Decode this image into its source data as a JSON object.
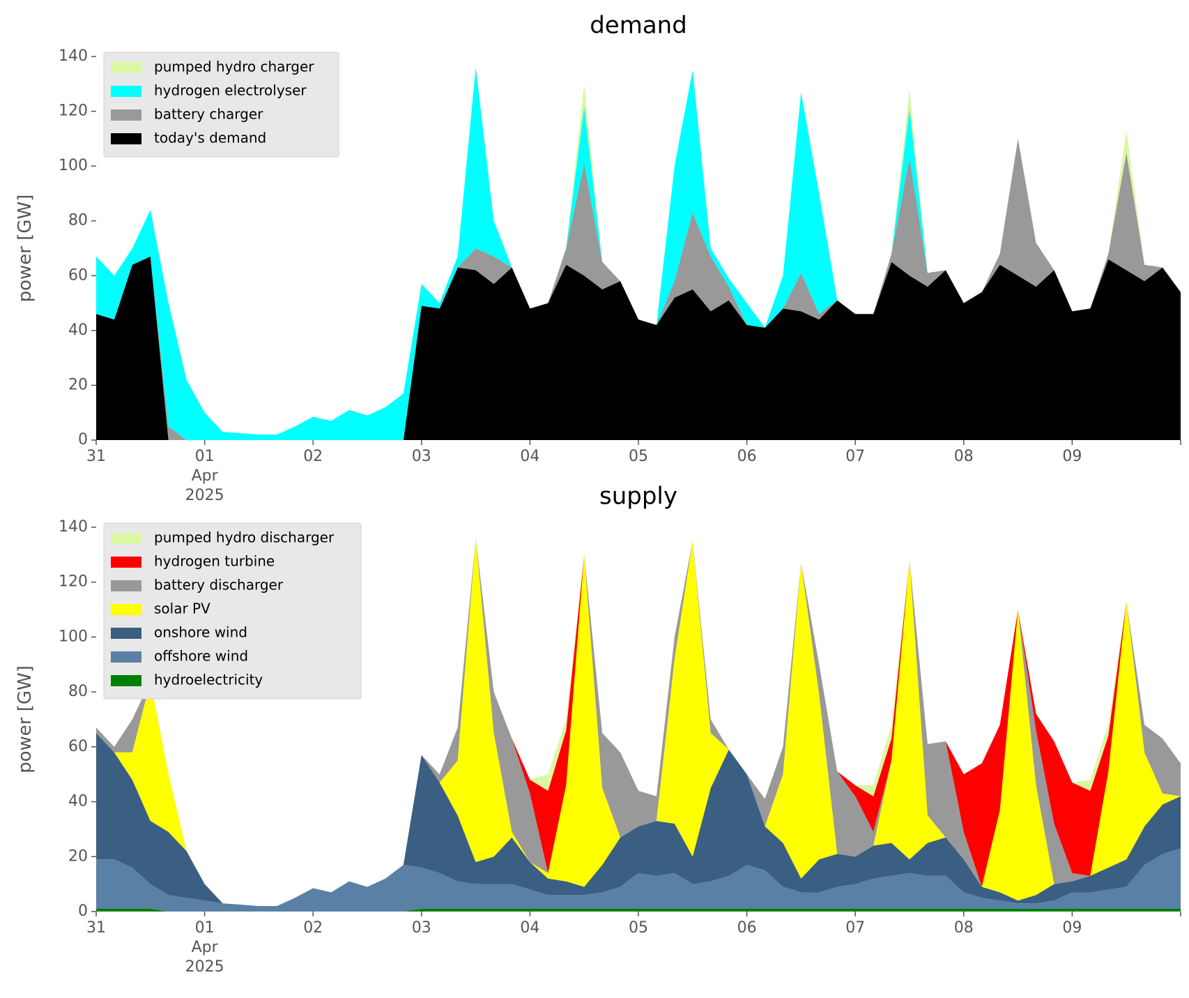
{
  "chart_data": [
    {
      "type": "area",
      "stacked": true,
      "title": "demand",
      "ylabel": "power [GW]",
      "legend": "upper left",
      "x": [
        "2025-03-31 00:00",
        "2025-03-31 04:00",
        "2025-03-31 08:00",
        "2025-03-31 12:00",
        "2025-03-31 16:00",
        "2025-03-31 20:00",
        "2025-04-01 00:00",
        "2025-04-01 04:00",
        "2025-04-01 08:00",
        "2025-04-01 12:00",
        "2025-04-01 16:00",
        "2025-04-01 20:00",
        "2025-04-02 00:00",
        "2025-04-02 04:00",
        "2025-04-02 08:00",
        "2025-04-02 12:00",
        "2025-04-02 16:00",
        "2025-04-02 20:00",
        "2025-04-03 00:00",
        "2025-04-03 04:00",
        "2025-04-03 08:00",
        "2025-04-03 12:00",
        "2025-04-03 16:00",
        "2025-04-03 20:00",
        "2025-04-04 00:00",
        "2025-04-04 04:00",
        "2025-04-04 08:00",
        "2025-04-04 12:00",
        "2025-04-04 16:00",
        "2025-04-04 20:00",
        "2025-04-05 00:00",
        "2025-04-05 04:00",
        "2025-04-05 08:00",
        "2025-04-05 12:00",
        "2025-04-05 16:00",
        "2025-04-05 20:00",
        "2025-04-06 00:00",
        "2025-04-06 04:00",
        "2025-04-06 08:00",
        "2025-04-06 12:00",
        "2025-04-06 16:00",
        "2025-04-06 20:00",
        "2025-04-07 00:00",
        "2025-04-07 04:00",
        "2025-04-07 08:00",
        "2025-04-07 12:00",
        "2025-04-07 16:00",
        "2025-04-07 20:00",
        "2025-04-08 00:00",
        "2025-04-08 04:00",
        "2025-04-08 08:00",
        "2025-04-08 12:00",
        "2025-04-08 16:00",
        "2025-04-08 20:00",
        "2025-04-09 00:00",
        "2025-04-09 04:00",
        "2025-04-09 08:00",
        "2025-04-09 12:00",
        "2025-04-09 16:00",
        "2025-04-09 20:00",
        "2025-04-10 00:00"
      ],
      "xlim": [
        "2025-03-31 00:00",
        "2025-04-10 00:00"
      ],
      "xticks": [
        {
          "value": "2025-03-31",
          "label": "31"
        },
        {
          "value": "2025-04-01",
          "label": "01\nApr\n2025"
        },
        {
          "value": "2025-04-02",
          "label": "02"
        },
        {
          "value": "2025-04-03",
          "label": "03"
        },
        {
          "value": "2025-04-04",
          "label": "04"
        },
        {
          "value": "2025-04-05",
          "label": "05"
        },
        {
          "value": "2025-04-06",
          "label": "06"
        },
        {
          "value": "2025-04-07",
          "label": "07"
        },
        {
          "value": "2025-04-08",
          "label": "08"
        },
        {
          "value": "2025-04-09",
          "label": "09"
        }
      ],
      "ylim": [
        0,
        140
      ],
      "yticks": [
        0,
        20,
        40,
        60,
        80,
        100,
        120,
        140
      ],
      "series": [
        {
          "name": "pumped hydro charger",
          "color": "#dcf7a3",
          "values": [
            0,
            0,
            0,
            0,
            0,
            0,
            0,
            0,
            0,
            0,
            0,
            0,
            0,
            0,
            0,
            0,
            0,
            0,
            0,
            0,
            0,
            0,
            0,
            0,
            0,
            0,
            0,
            8,
            0,
            0,
            0,
            0,
            0,
            0,
            0,
            0,
            0,
            0,
            0,
            0,
            0,
            0,
            0,
            0,
            0,
            7,
            0,
            0,
            0,
            0,
            0,
            0,
            0,
            0,
            0,
            0,
            0,
            8,
            0,
            0,
            0
          ]
        },
        {
          "name": "hydrogen electrolyser",
          "color": "#00ffff",
          "values": [
            21,
            16,
            6,
            17,
            45,
            22,
            10,
            3,
            2.5,
            2,
            2,
            5,
            8.5,
            7,
            11,
            9,
            12,
            17,
            8,
            2,
            4,
            66,
            13,
            0,
            0,
            0,
            0,
            21,
            0,
            0,
            0,
            0,
            42,
            52,
            3,
            3,
            8,
            0,
            12,
            66,
            44,
            0,
            0,
            0,
            0,
            18,
            0,
            0,
            0,
            0,
            0,
            0,
            0,
            0,
            0,
            0,
            0,
            0,
            0,
            0,
            0
          ]
        },
        {
          "name": "battery charger",
          "color": "#999999",
          "values": [
            0,
            0,
            0,
            0,
            5,
            0,
            0,
            0,
            0,
            0,
            0,
            0,
            0,
            0,
            0,
            0,
            0,
            0,
            0,
            0,
            0,
            8,
            10,
            0,
            0,
            0,
            6,
            41,
            10,
            0,
            0,
            0,
            6,
            28,
            20,
            5,
            0,
            0,
            0,
            14,
            2,
            0,
            0,
            0,
            3,
            43,
            5,
            0,
            0,
            0,
            4,
            50,
            16,
            0,
            0,
            0,
            2,
            43,
            6,
            0,
            0
          ]
        },
        {
          "name": "today's demand",
          "color": "#000000",
          "values": [
            46,
            44,
            64,
            67,
            0,
            0,
            0,
            0,
            0,
            0,
            0,
            0,
            0,
            0,
            0,
            0,
            0,
            0,
            49,
            48,
            63,
            62,
            57,
            63,
            48,
            50,
            64,
            60,
            55,
            58,
            44,
            42,
            52,
            55,
            47,
            51,
            42,
            41,
            48,
            47,
            44,
            51,
            46,
            46,
            65,
            60,
            56,
            62,
            50,
            54,
            64,
            60,
            56,
            62,
            47,
            48,
            66,
            62,
            58,
            63,
            54
          ]
        }
      ]
    },
    {
      "type": "area",
      "stacked": true,
      "title": "supply",
      "ylabel": "power [GW]",
      "legend": "upper left",
      "x": [
        "2025-03-31 00:00",
        "2025-03-31 04:00",
        "2025-03-31 08:00",
        "2025-03-31 12:00",
        "2025-03-31 16:00",
        "2025-03-31 20:00",
        "2025-04-01 00:00",
        "2025-04-01 04:00",
        "2025-04-01 08:00",
        "2025-04-01 12:00",
        "2025-04-01 16:00",
        "2025-04-01 20:00",
        "2025-04-02 00:00",
        "2025-04-02 04:00",
        "2025-04-02 08:00",
        "2025-04-02 12:00",
        "2025-04-02 16:00",
        "2025-04-02 20:00",
        "2025-04-03 00:00",
        "2025-04-03 04:00",
        "2025-04-03 08:00",
        "2025-04-03 12:00",
        "2025-04-03 16:00",
        "2025-04-03 20:00",
        "2025-04-04 00:00",
        "2025-04-04 04:00",
        "2025-04-04 08:00",
        "2025-04-04 12:00",
        "2025-04-04 16:00",
        "2025-04-04 20:00",
        "2025-04-05 00:00",
        "2025-04-05 04:00",
        "2025-04-05 08:00",
        "2025-04-05 12:00",
        "2025-04-05 16:00",
        "2025-04-05 20:00",
        "2025-04-06 00:00",
        "2025-04-06 04:00",
        "2025-04-06 08:00",
        "2025-04-06 12:00",
        "2025-04-06 16:00",
        "2025-04-06 20:00",
        "2025-04-07 00:00",
        "2025-04-07 04:00",
        "2025-04-07 08:00",
        "2025-04-07 12:00",
        "2025-04-07 16:00",
        "2025-04-07 20:00",
        "2025-04-08 00:00",
        "2025-04-08 04:00",
        "2025-04-08 08:00",
        "2025-04-08 12:00",
        "2025-04-08 16:00",
        "2025-04-08 20:00",
        "2025-04-09 00:00",
        "2025-04-09 04:00",
        "2025-04-09 08:00",
        "2025-04-09 12:00",
        "2025-04-09 16:00",
        "2025-04-09 20:00",
        "2025-04-10 00:00"
      ],
      "xlim": [
        "2025-03-31 00:00",
        "2025-04-10 00:00"
      ],
      "xticks": [
        {
          "value": "2025-03-31",
          "label": "31"
        },
        {
          "value": "2025-04-01",
          "label": "01\nApr\n2025"
        },
        {
          "value": "2025-04-02",
          "label": "02"
        },
        {
          "value": "2025-04-03",
          "label": "03"
        },
        {
          "value": "2025-04-04",
          "label": "04"
        },
        {
          "value": "2025-04-05",
          "label": "05"
        },
        {
          "value": "2025-04-06",
          "label": "06"
        },
        {
          "value": "2025-04-07",
          "label": "07"
        },
        {
          "value": "2025-04-08",
          "label": "08"
        },
        {
          "value": "2025-04-09",
          "label": "09"
        }
      ],
      "ylim": [
        0,
        140
      ],
      "yticks": [
        0,
        20,
        40,
        60,
        80,
        100,
        120,
        140
      ],
      "series": [
        {
          "name": "pumped hydro discharger",
          "color": "#dcf7a3",
          "values": [
            0,
            0,
            0,
            0,
            0,
            0,
            0,
            0,
            0,
            0,
            0,
            0,
            0,
            0,
            0,
            0,
            0,
            0,
            0,
            0,
            0,
            0,
            0,
            0,
            0,
            6,
            4,
            0,
            0,
            0,
            0,
            0,
            0,
            0,
            0,
            0,
            0,
            0,
            0,
            0,
            0,
            0,
            0,
            4,
            5,
            0,
            0,
            0,
            0,
            0,
            0,
            0,
            0,
            0,
            0,
            4,
            4,
            0,
            0,
            0,
            0
          ]
        },
        {
          "name": "hydrogen turbine",
          "color": "#ff0000",
          "values": [
            0,
            0,
            0,
            0,
            0,
            0,
            0,
            0,
            0,
            0,
            0,
            0,
            0,
            0,
            0,
            0,
            0,
            0,
            0,
            0,
            0,
            0,
            0,
            0,
            5,
            30,
            20,
            0,
            0,
            0,
            0,
            0,
            0,
            0,
            0,
            0,
            0,
            0,
            0,
            0,
            0,
            0,
            4,
            13,
            8,
            0,
            0,
            0,
            21,
            45,
            31,
            0,
            6,
            30,
            33,
            31,
            13,
            0,
            0,
            0,
            0
          ]
        },
        {
          "name": "battery discharger",
          "color": "#999999",
          "values": [
            2,
            2,
            12,
            0,
            0,
            0,
            0,
            0,
            0,
            0,
            0,
            0,
            0,
            0,
            0,
            0,
            0,
            0,
            0,
            3,
            12,
            0,
            15,
            34,
            25,
            0,
            0,
            0,
            20,
            31,
            13,
            9,
            8,
            0,
            5,
            0,
            0,
            10,
            10,
            0,
            11,
            30,
            22,
            5,
            0,
            0,
            26,
            35,
            10,
            0,
            0,
            0,
            20,
            22,
            3,
            0,
            0,
            0,
            10,
            20,
            12
          ]
        },
        {
          "name": "solar PV",
          "color": "#ffff00",
          "values": [
            0,
            0,
            10,
            51,
            21,
            0,
            0,
            0,
            0,
            0,
            0,
            0,
            0,
            0,
            0,
            0,
            0,
            0,
            0,
            0,
            20,
            118,
            45,
            2,
            0,
            2,
            35,
            121,
            28,
            0,
            0,
            0,
            60,
            115,
            20,
            0,
            0,
            0,
            25,
            115,
            60,
            0,
            0,
            0,
            30,
            109,
            10,
            0,
            0,
            0,
            30,
            106,
            40,
            0,
            0,
            0,
            35,
            94,
            27,
            4,
            0
          ]
        },
        {
          "name": "onshore wind",
          "color": "#3a5f82",
          "values": [
            46,
            39,
            32,
            23,
            23,
            17,
            6,
            0,
            0,
            0,
            0,
            0,
            0,
            0,
            0,
            0,
            0,
            0,
            41,
            33,
            24,
            8,
            10,
            17,
            10,
            6,
            5,
            3,
            10,
            18,
            17,
            20,
            18,
            10,
            34,
            46,
            33,
            16,
            16,
            5,
            12,
            12,
            10,
            12,
            12,
            5,
            12,
            14,
            12,
            4,
            3,
            1,
            3,
            6,
            4,
            6,
            8,
            10,
            14,
            18,
            19
          ]
        },
        {
          "name": "offshore wind",
          "color": "#5b80a5",
          "values": [
            18,
            18,
            15,
            9,
            6,
            5,
            4,
            3,
            2.5,
            2,
            2,
            5,
            8.5,
            7,
            11,
            9,
            12,
            17,
            15,
            13,
            10,
            9,
            9,
            9,
            7,
            5,
            5,
            5,
            6,
            8,
            13,
            12,
            13,
            9,
            10,
            12,
            16,
            14,
            8,
            6,
            6,
            8,
            9,
            11,
            12,
            13,
            12,
            12,
            6,
            4,
            3,
            2,
            2,
            3,
            6,
            6,
            7,
            8,
            16,
            20,
            22
          ]
        },
        {
          "name": "hydroelectricity",
          "color": "#008000",
          "values": [
            1,
            1,
            1,
            1,
            0,
            0,
            0,
            0,
            0,
            0,
            0,
            0,
            0,
            0,
            0,
            0,
            0,
            0,
            1,
            1,
            1,
            1,
            1,
            1,
            1,
            1,
            1,
            1,
            1,
            1,
            1,
            1,
            1,
            1,
            1,
            1,
            1,
            1,
            1,
            1,
            1,
            1,
            1,
            1,
            1,
            1,
            1,
            1,
            1,
            1,
            1,
            1,
            1,
            1,
            1,
            1,
            1,
            1,
            1,
            1,
            1
          ]
        }
      ]
    }
  ]
}
